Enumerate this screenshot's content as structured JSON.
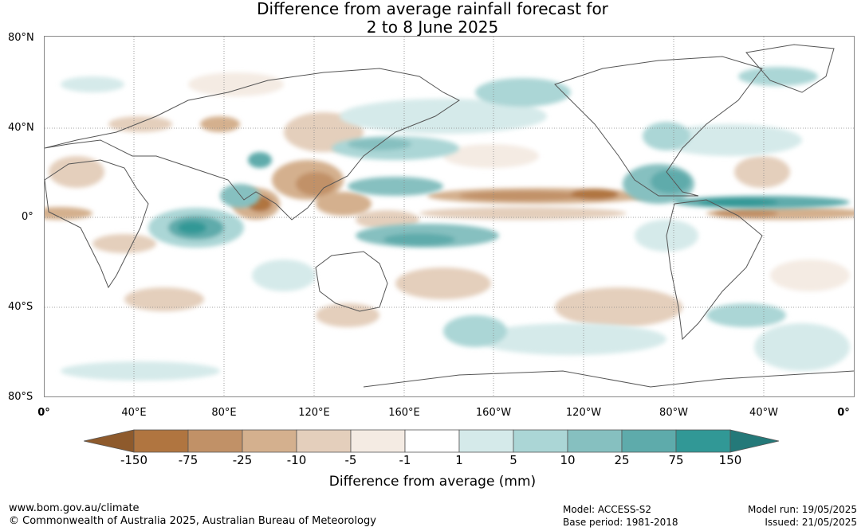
{
  "title": {
    "line1": "Difference from average rainfall forecast for",
    "line2": "2 to 8 June 2025"
  },
  "map": {
    "projection": "equirectangular",
    "lat_labels": [
      "80°N",
      "40°N",
      "0°",
      "40°S",
      "80°S"
    ],
    "lon_labels": [
      "0°",
      "40°E",
      "80°E",
      "120°E",
      "160°E",
      "160°W",
      "120°W",
      "80°W",
      "40°W",
      "0°"
    ],
    "gridlines": true
  },
  "colorbar": {
    "tick_labels": [
      "-150",
      "-75",
      "-25",
      "-10",
      "-5",
      "-1",
      "1",
      "5",
      "10",
      "25",
      "75",
      "150"
    ],
    "colors": [
      "#8e5a2c",
      "#b07540",
      "#c19167",
      "#d4b08e",
      "#e4cfbc",
      "#f4ebe3",
      "#ffffff",
      "#d5eaea",
      "#abd6d6",
      "#86c0c0",
      "#5eabab",
      "#319896",
      "#247979"
    ],
    "title": "Difference from average (mm)"
  },
  "footer": {
    "website": "www.bom.gov.au/climate",
    "copyright": "© Commonwealth of Australia 2025, Australian Bureau of Meteorology",
    "model": "Model: ACCESS-S2",
    "base_period": "Base period: 1981-2018",
    "model_run": "Model run: 19/05/2025",
    "issued": "Issued: 21/05/2025"
  }
}
